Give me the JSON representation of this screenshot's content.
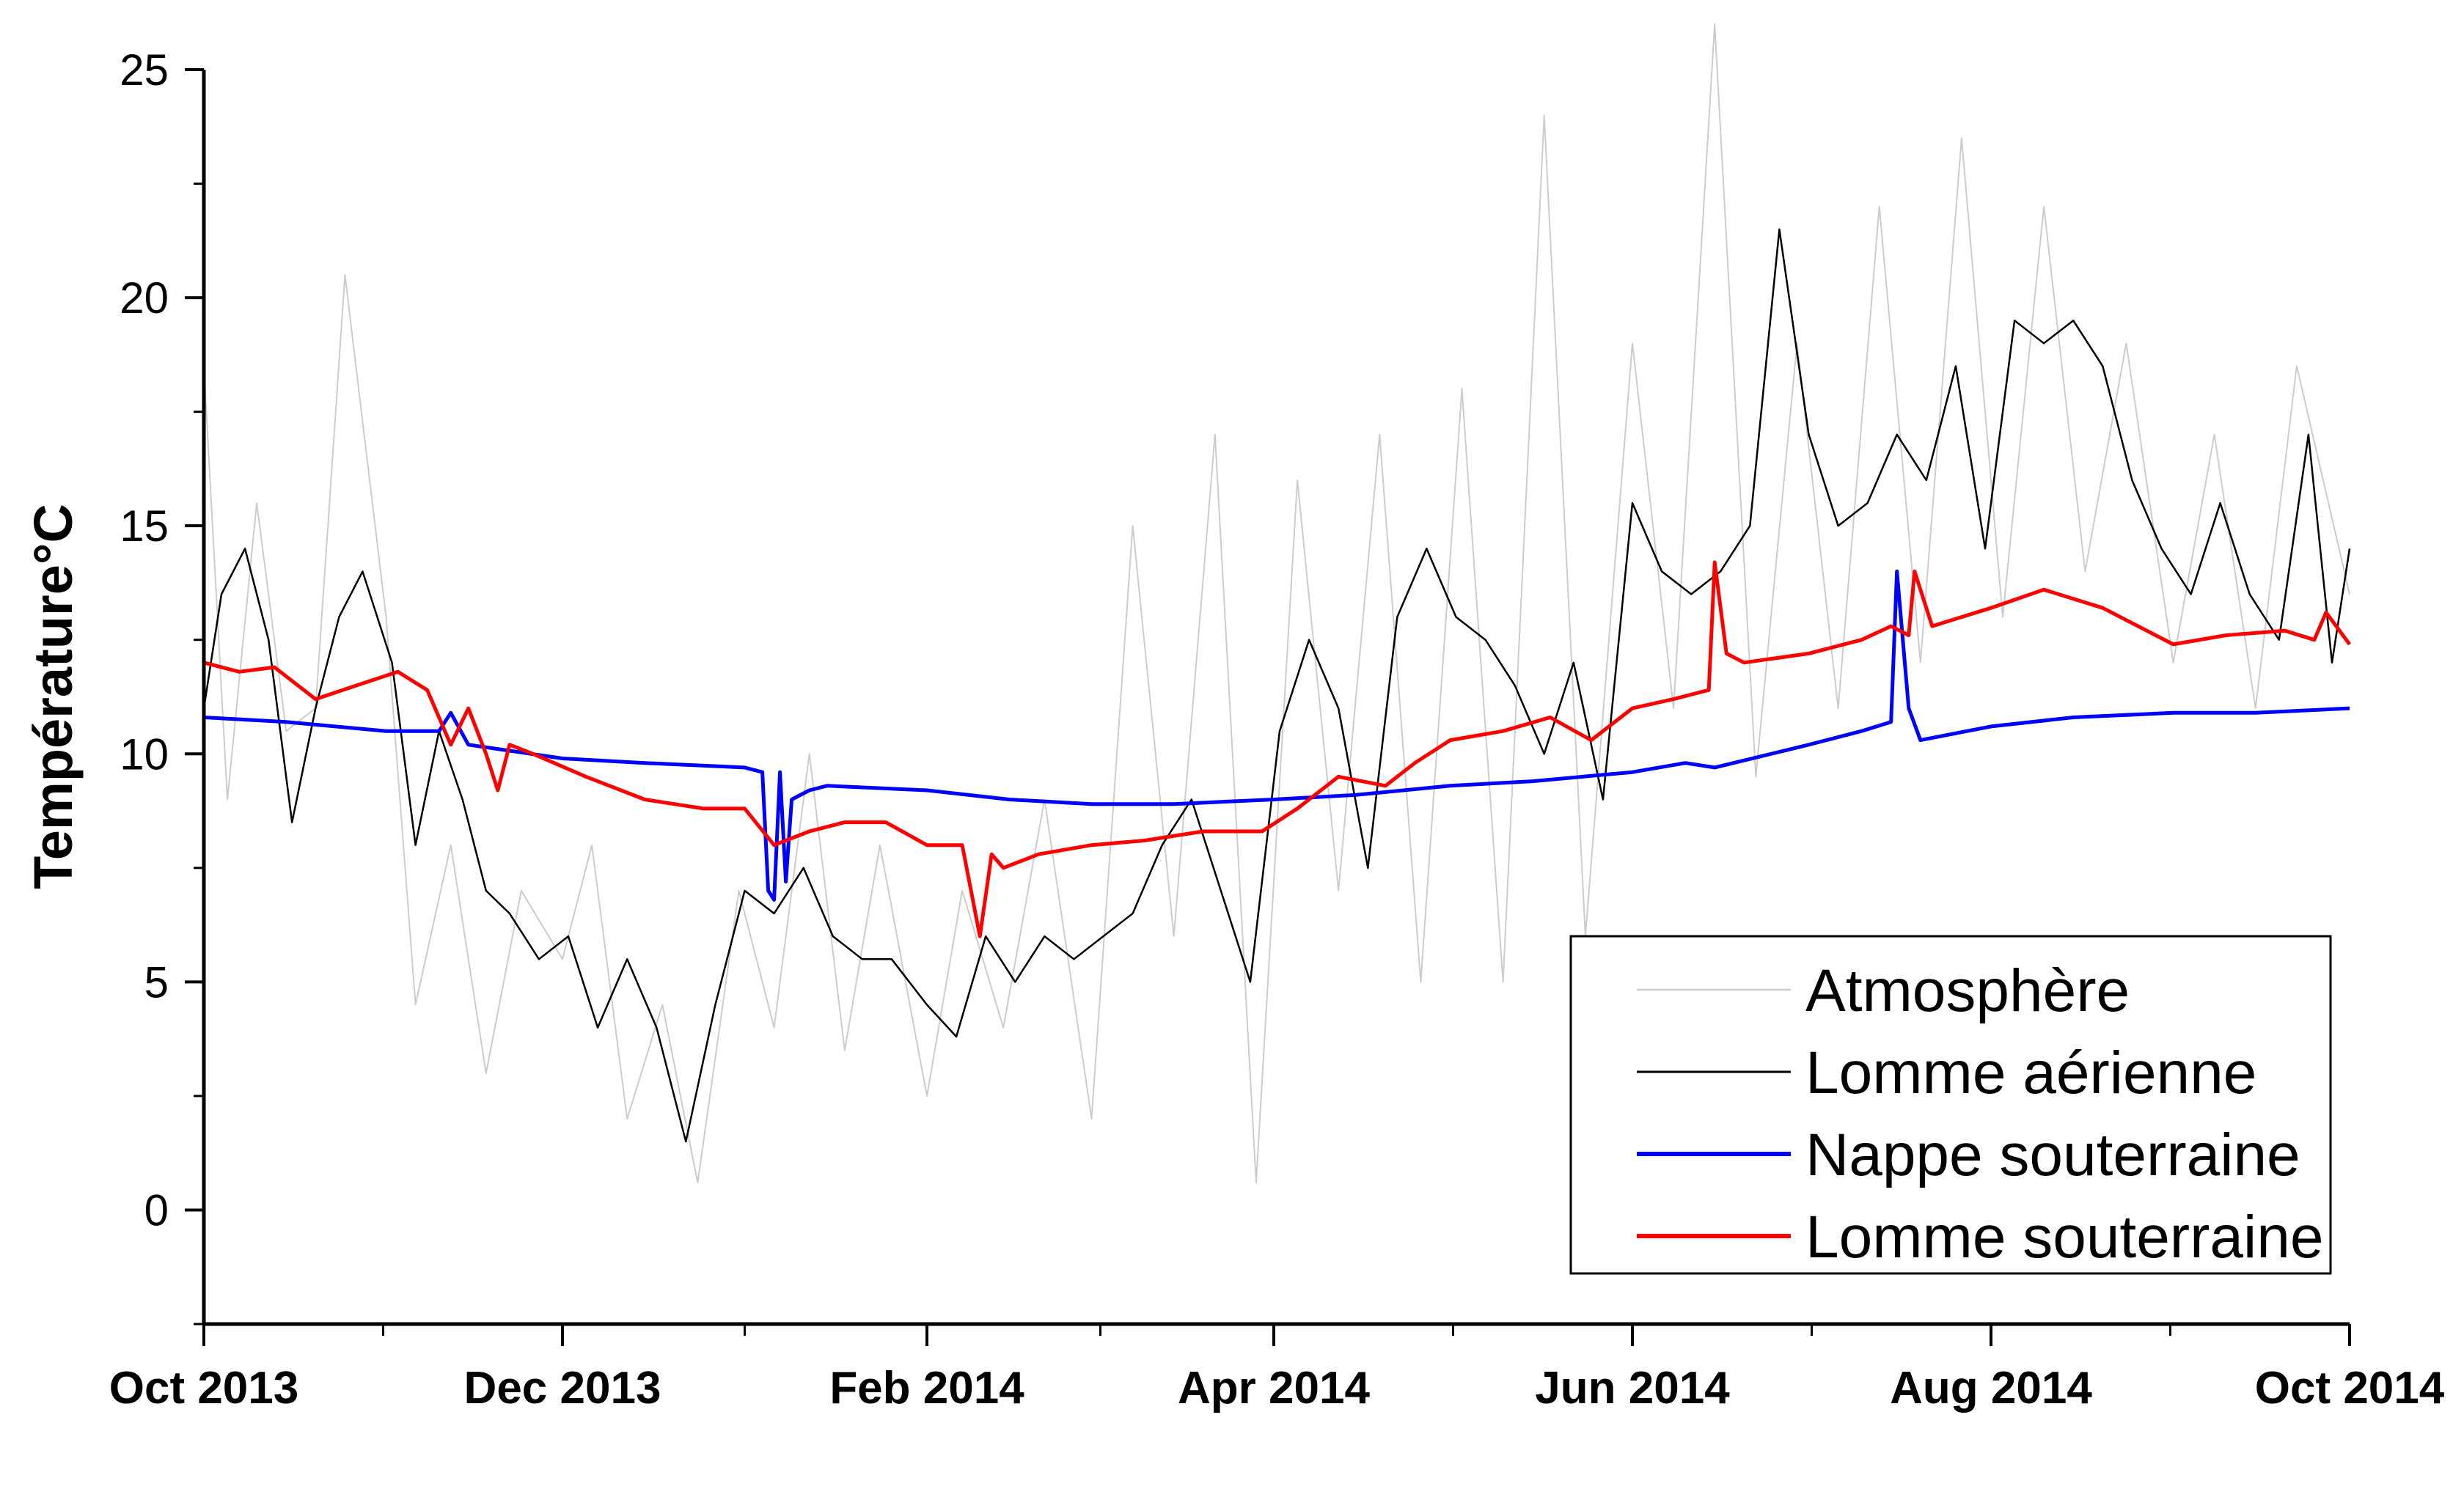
{
  "chart_data": {
    "type": "line",
    "title": "",
    "xlabel": "",
    "ylabel": "Température°C",
    "ylim": [
      -2.5,
      25
    ],
    "xlim": [
      "2013-10-01",
      "2014-10-01"
    ],
    "y_ticks": [
      0,
      5,
      10,
      15,
      20,
      25
    ],
    "y_tick_labels": [
      "0",
      "5",
      "10",
      "15",
      "20",
      "25"
    ],
    "x_ticks": [
      "2013-10-01",
      "2013-12-01",
      "2014-02-01",
      "2014-04-01",
      "2014-06-01",
      "2014-08-01",
      "2014-10-01"
    ],
    "x_tick_labels": [
      "Oct 2013",
      "Dec 2013",
      "Feb 2014",
      "Apr 2014",
      "Jun 2014",
      "Aug 2014",
      "Oct 2014"
    ],
    "grid": false,
    "legend_position": "bottom-right",
    "series": [
      {
        "name": "Atmosphère",
        "color": "#cccccc",
        "x": [
          "2013-10-01",
          "2013-10-05",
          "2013-10-10",
          "2013-10-15",
          "2013-10-20",
          "2013-10-25",
          "2013-11-01",
          "2013-11-06",
          "2013-11-12",
          "2013-11-18",
          "2013-11-24",
          "2013-12-01",
          "2013-12-06",
          "2013-12-12",
          "2013-12-18",
          "2013-12-24",
          "2013-12-31",
          "2014-01-06",
          "2014-01-12",
          "2014-01-18",
          "2014-01-24",
          "2014-02-01",
          "2014-02-07",
          "2014-02-14",
          "2014-02-21",
          "2014-03-01",
          "2014-03-08",
          "2014-03-15",
          "2014-03-22",
          "2014-03-29",
          "2014-04-05",
          "2014-04-12",
          "2014-04-19",
          "2014-04-26",
          "2014-05-03",
          "2014-05-10",
          "2014-05-17",
          "2014-05-24",
          "2014-06-01",
          "2014-06-08",
          "2014-06-15",
          "2014-06-22",
          "2014-06-29",
          "2014-07-06",
          "2014-07-13",
          "2014-07-20",
          "2014-07-27",
          "2014-08-03",
          "2014-08-10",
          "2014-08-17",
          "2014-08-24",
          "2014-09-01",
          "2014-09-08",
          "2014-09-15",
          "2014-09-22",
          "2014-10-01"
        ],
        "values": [
          18.5,
          9.0,
          15.5,
          10.5,
          11.0,
          20.5,
          13.0,
          4.5,
          8.0,
          3.0,
          7.0,
          5.5,
          8.0,
          2.0,
          4.5,
          0.6,
          7.0,
          4.0,
          10.0,
          3.5,
          8.0,
          2.5,
          7.0,
          4.0,
          9.0,
          2.0,
          15.0,
          6.0,
          17.0,
          0.6,
          16.0,
          7.0,
          17.0,
          5.0,
          18.0,
          5.0,
          24.0,
          6.0,
          19.0,
          11.0,
          26.0,
          9.5,
          19.0,
          11.0,
          22.0,
          12.0,
          23.5,
          13.0,
          22.0,
          14.0,
          19.0,
          12.0,
          17.0,
          11.0,
          18.5,
          13.5
        ]
      },
      {
        "name": "Lomme aérienne",
        "color": "#000000",
        "x": [
          "2013-10-01",
          "2013-10-04",
          "2013-10-08",
          "2013-10-12",
          "2013-10-16",
          "2013-10-20",
          "2013-10-24",
          "2013-10-28",
          "2013-11-02",
          "2013-11-06",
          "2013-11-10",
          "2013-11-14",
          "2013-11-18",
          "2013-11-22",
          "2013-11-27",
          "2013-12-02",
          "2013-12-07",
          "2013-12-12",
          "2013-12-17",
          "2013-12-22",
          "2013-12-27",
          "2014-01-01",
          "2014-01-06",
          "2014-01-11",
          "2014-01-16",
          "2014-01-21",
          "2014-01-26",
          "2014-02-01",
          "2014-02-06",
          "2014-02-11",
          "2014-02-16",
          "2014-02-21",
          "2014-02-26",
          "2014-03-03",
          "2014-03-08",
          "2014-03-13",
          "2014-03-18",
          "2014-03-23",
          "2014-03-28",
          "2014-04-02",
          "2014-04-07",
          "2014-04-12",
          "2014-04-17",
          "2014-04-22",
          "2014-04-27",
          "2014-05-02",
          "2014-05-07",
          "2014-05-12",
          "2014-05-17",
          "2014-05-22",
          "2014-05-27",
          "2014-06-01",
          "2014-06-06",
          "2014-06-11",
          "2014-06-16",
          "2014-06-21",
          "2014-06-26",
          "2014-07-01",
          "2014-07-06",
          "2014-07-11",
          "2014-07-16",
          "2014-07-21",
          "2014-07-26",
          "2014-07-31",
          "2014-08-05",
          "2014-08-10",
          "2014-08-15",
          "2014-08-20",
          "2014-08-25",
          "2014-08-30",
          "2014-09-04",
          "2014-09-09",
          "2014-09-14",
          "2014-09-19",
          "2014-09-24",
          "2014-09-28",
          "2014-10-01"
        ],
        "values": [
          11.0,
          13.5,
          14.5,
          12.5,
          8.5,
          11.0,
          13.0,
          14.0,
          12.0,
          8.0,
          10.5,
          9.0,
          7.0,
          6.5,
          5.5,
          6.0,
          4.0,
          5.5,
          4.0,
          1.5,
          4.5,
          7.0,
          6.5,
          7.5,
          6.0,
          5.5,
          5.5,
          4.5,
          3.8,
          6.0,
          5.0,
          6.0,
          5.5,
          6.0,
          6.5,
          8.0,
          9.0,
          7.0,
          5.0,
          10.5,
          12.5,
          11.0,
          7.5,
          13.0,
          14.5,
          13.0,
          12.5,
          11.5,
          10.0,
          12.0,
          9.0,
          15.5,
          14.0,
          13.5,
          14.0,
          15.0,
          21.5,
          17.0,
          15.0,
          15.5,
          17.0,
          16.0,
          18.5,
          14.5,
          19.5,
          19.0,
          19.5,
          18.5,
          16.0,
          14.5,
          13.5,
          15.5,
          13.5,
          12.5,
          17.0,
          12.0,
          14.5
        ]
      },
      {
        "name": "Nappe souterraine",
        "color": "#0000ff",
        "x": [
          "2013-10-01",
          "2013-10-15",
          "2013-11-01",
          "2013-11-10",
          "2013-11-12",
          "2013-11-15",
          "2013-12-01",
          "2013-12-15",
          "2014-01-01",
          "2014-01-04",
          "2014-01-05",
          "2014-01-06",
          "2014-01-07",
          "2014-01-08",
          "2014-01-09",
          "2014-01-12",
          "2014-01-15",
          "2014-02-01",
          "2014-02-15",
          "2014-03-01",
          "2014-03-15",
          "2014-04-01",
          "2014-04-15",
          "2014-05-01",
          "2014-05-15",
          "2014-06-01",
          "2014-06-10",
          "2014-06-15",
          "2014-07-01",
          "2014-07-10",
          "2014-07-15",
          "2014-07-16",
          "2014-07-18",
          "2014-07-20",
          "2014-08-01",
          "2014-08-15",
          "2014-09-01",
          "2014-09-15",
          "2014-10-01"
        ],
        "values": [
          10.8,
          10.7,
          10.5,
          10.5,
          10.9,
          10.2,
          9.9,
          9.8,
          9.7,
          9.6,
          7.0,
          6.8,
          9.6,
          7.2,
          9.0,
          9.2,
          9.3,
          9.2,
          9.0,
          8.9,
          8.9,
          9.0,
          9.1,
          9.3,
          9.4,
          9.6,
          9.8,
          9.7,
          10.2,
          10.5,
          10.7,
          14.0,
          11.0,
          10.3,
          10.6,
          10.8,
          10.9,
          10.9,
          11.0
        ]
      },
      {
        "name": "Lomme souterraine",
        "color": "#ff0000",
        "x": [
          "2013-10-01",
          "2013-10-07",
          "2013-10-13",
          "2013-10-20",
          "2013-10-27",
          "2013-11-03",
          "2013-11-08",
          "2013-11-12",
          "2013-11-15",
          "2013-11-18",
          "2013-11-20",
          "2013-11-22",
          "2013-11-26",
          "2013-12-05",
          "2013-12-15",
          "2013-12-25",
          "2014-01-01",
          "2014-01-06",
          "2014-01-12",
          "2014-01-18",
          "2014-01-25",
          "2014-02-01",
          "2014-02-07",
          "2014-02-10",
          "2014-02-12",
          "2014-02-14",
          "2014-02-20",
          "2014-03-01",
          "2014-03-10",
          "2014-03-20",
          "2014-03-30",
          "2014-04-05",
          "2014-04-12",
          "2014-04-20",
          "2014-04-25",
          "2014-05-01",
          "2014-05-10",
          "2014-05-18",
          "2014-05-25",
          "2014-06-01",
          "2014-06-08",
          "2014-06-14",
          "2014-06-15",
          "2014-06-17",
          "2014-06-20",
          "2014-07-01",
          "2014-07-10",
          "2014-07-15",
          "2014-07-18",
          "2014-07-19",
          "2014-07-22",
          "2014-08-01",
          "2014-08-10",
          "2014-08-20",
          "2014-09-01",
          "2014-09-10",
          "2014-09-20",
          "2014-09-25",
          "2014-09-27",
          "2014-10-01"
        ],
        "values": [
          12.0,
          11.8,
          11.9,
          11.2,
          11.5,
          11.8,
          11.4,
          10.2,
          11.0,
          10.0,
          9.2,
          10.2,
          10.0,
          9.5,
          9.0,
          8.8,
          8.8,
          8.0,
          8.3,
          8.5,
          8.5,
          8.0,
          8.0,
          6.0,
          7.8,
          7.5,
          7.8,
          8.0,
          8.1,
          8.3,
          8.3,
          8.8,
          9.5,
          9.3,
          9.8,
          10.3,
          10.5,
          10.8,
          10.3,
          11.0,
          11.2,
          11.4,
          14.2,
          12.2,
          12.0,
          12.2,
          12.5,
          12.8,
          12.6,
          14.0,
          12.8,
          13.2,
          13.6,
          13.2,
          12.4,
          12.6,
          12.7,
          12.5,
          13.1,
          12.4
        ]
      }
    ]
  }
}
